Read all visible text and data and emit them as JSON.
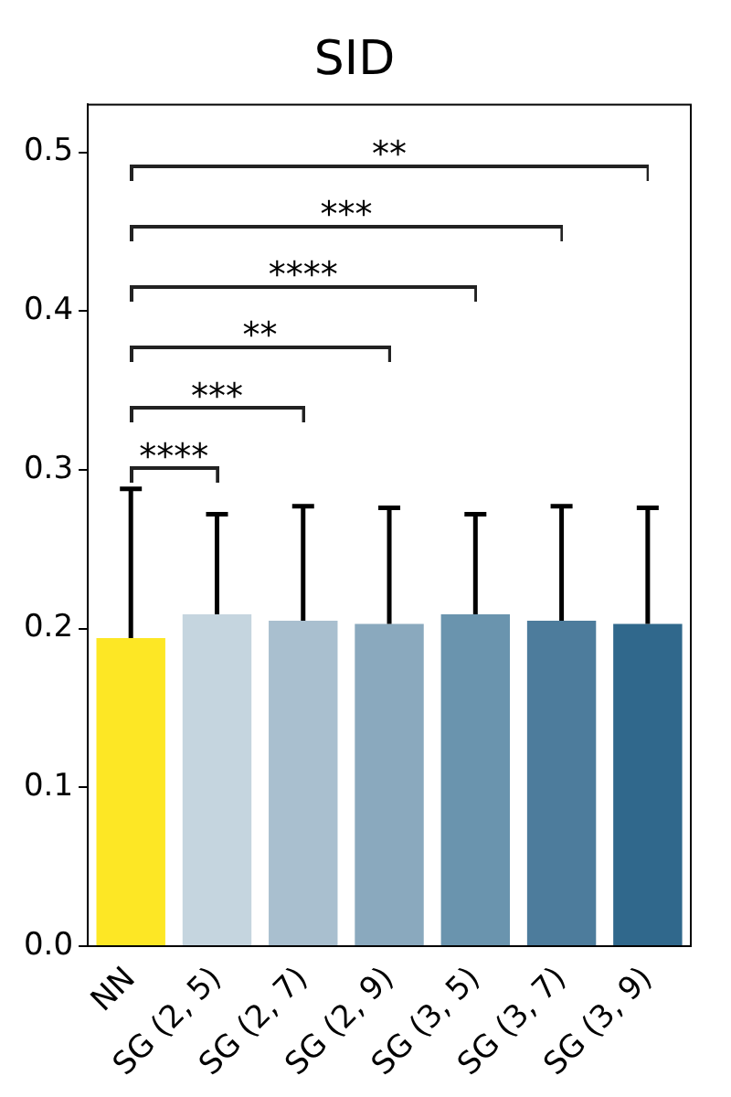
{
  "chart_data": {
    "type": "bar",
    "title": "SID",
    "categories": [
      "NN",
      "SG (2, 5)",
      "SG (2, 7)",
      "SG (2, 9)",
      "SG (3, 5)",
      "SG (3, 7)",
      "SG (3, 9)"
    ],
    "values": [
      0.194,
      0.209,
      0.205,
      0.203,
      0.209,
      0.205,
      0.203
    ],
    "colors": [
      "#fde725",
      "#c5d5df",
      "#a9bfcf",
      "#8aa9be",
      "#6a94ae",
      "#4d7c9c",
      "#30688c"
    ],
    "errors": [
      [
        0.194,
        0.288
      ],
      [
        0.209,
        0.272
      ],
      [
        0.205,
        0.277
      ],
      [
        0.203,
        0.276
      ],
      [
        0.209,
        0.272
      ],
      [
        0.205,
        0.277
      ],
      [
        0.203,
        0.276
      ]
    ],
    "ylim": [
      0,
      0.53
    ],
    "yticks": [
      {
        "value": 0,
        "label": "0.0"
      },
      {
        "value": 0.1,
        "label": "0.1"
      },
      {
        "value": 0.2,
        "label": "0.2"
      },
      {
        "value": 0.3,
        "label": "0.3"
      },
      {
        "value": 0.4,
        "label": "0.4"
      },
      {
        "value": 0.5,
        "label": "0.5"
      }
    ],
    "grid": false,
    "legend": false,
    "annotations": [
      "****",
      "***",
      "**",
      "****",
      "***",
      "**"
    ]
  }
}
